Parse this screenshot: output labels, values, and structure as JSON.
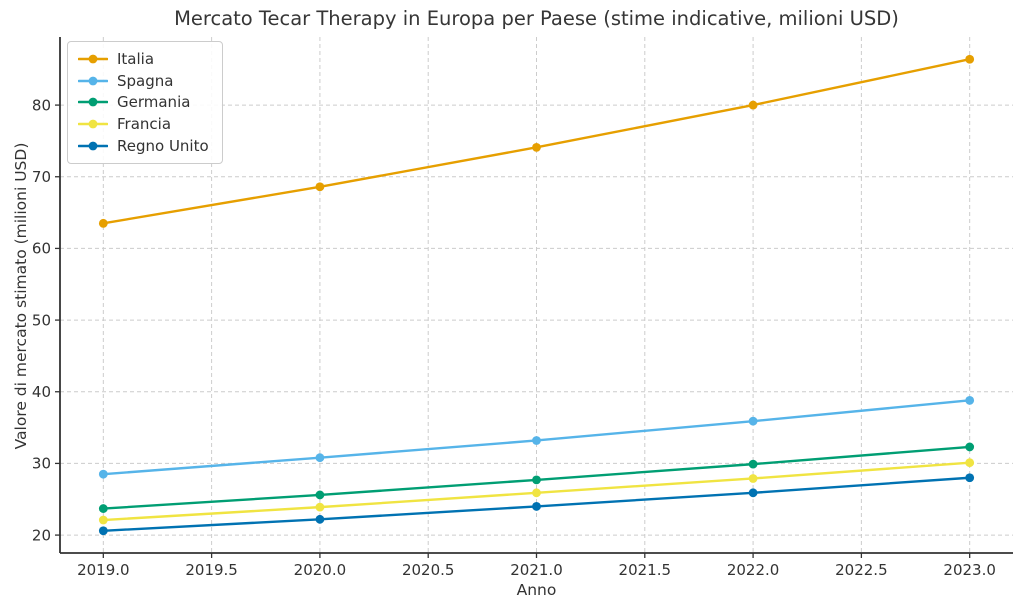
{
  "chart_data": {
    "type": "line",
    "title": "Mercato Tecar Therapy in Europa per Paese (stime indicative, milioni USD)",
    "xlabel": "Anno",
    "ylabel": "Valore di mercato stimato (milioni USD)",
    "x": [
      2019,
      2020,
      2021,
      2022,
      2023
    ],
    "x_tick_values": [
      2019.0,
      2019.5,
      2020.0,
      2020.5,
      2021.0,
      2021.5,
      2022.0,
      2022.5,
      2023.0
    ],
    "x_tick_labels": [
      "2019.0",
      "2019.5",
      "2020.0",
      "2020.5",
      "2021.0",
      "2021.5",
      "2022.0",
      "2022.5",
      "2023.0"
    ],
    "y_tick_values": [
      20,
      30,
      40,
      50,
      60,
      70,
      80
    ],
    "y_tick_labels": [
      "20",
      "30",
      "40",
      "50",
      "60",
      "70",
      "80"
    ],
    "xlim": [
      2018.8,
      2023.2
    ],
    "ylim": [
      17.5,
      89.5
    ],
    "grid": true,
    "grid_linestyle": "dashed",
    "legend_position": "upper-left",
    "marker": "circle",
    "series": [
      {
        "name": "Italia",
        "color": "#E69F00",
        "values": [
          63.5,
          68.6,
          74.1,
          80.0,
          86.4
        ]
      },
      {
        "name": "Spagna",
        "color": "#56B4E9",
        "values": [
          28.5,
          30.8,
          33.2,
          35.9,
          38.8
        ]
      },
      {
        "name": "Germania",
        "color": "#009E73",
        "values": [
          23.7,
          25.6,
          27.7,
          29.9,
          32.3
        ]
      },
      {
        "name": "Francia",
        "color": "#F0E442",
        "values": [
          22.1,
          23.9,
          25.9,
          27.9,
          30.1
        ]
      },
      {
        "name": "Regno Unito",
        "color": "#0072B2",
        "values": [
          20.6,
          22.2,
          24.0,
          25.9,
          28.0
        ]
      }
    ],
    "style": {
      "text_color": "#333333",
      "grid_color": "#cccccc",
      "spine_color": "#333333",
      "background": "#ffffff"
    }
  }
}
